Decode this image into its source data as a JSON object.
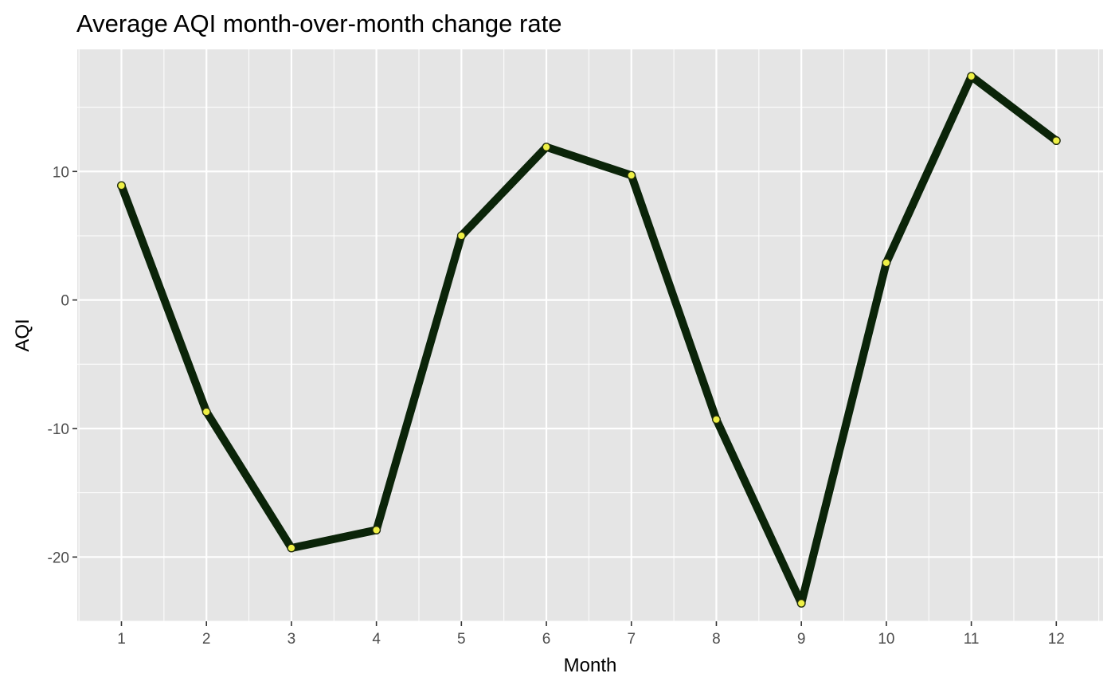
{
  "chart_data": {
    "type": "line",
    "title": "Average AQI month-over-month change rate",
    "xlabel": "Month",
    "ylabel": "AQI",
    "x": [
      1,
      2,
      3,
      4,
      5,
      6,
      7,
      8,
      9,
      10,
      11,
      12
    ],
    "x_tick_labels": [
      "1",
      "2",
      "3",
      "4",
      "5",
      "6",
      "7",
      "8",
      "9",
      "10",
      "11",
      "12"
    ],
    "y_ticks": [
      10,
      0,
      -10,
      -20
    ],
    "y_tick_labels": [
      "10",
      "0",
      "-10",
      "-20"
    ],
    "xlim": [
      0.48,
      12.55
    ],
    "ylim": [
      -25,
      19.5
    ],
    "grid": true,
    "series": [
      {
        "values": [
          8.9,
          -8.7,
          -19.3,
          -17.9,
          5.0,
          11.9,
          9.7,
          -9.3,
          -23.6,
          2.9,
          17.4,
          12.4
        ]
      }
    ],
    "colors": {
      "panel_background": "#e5e5e5",
      "grid": "#ffffff",
      "line": "#0b2409",
      "point_fill": "#eef046",
      "point_stroke": "#1f2a0c"
    }
  }
}
